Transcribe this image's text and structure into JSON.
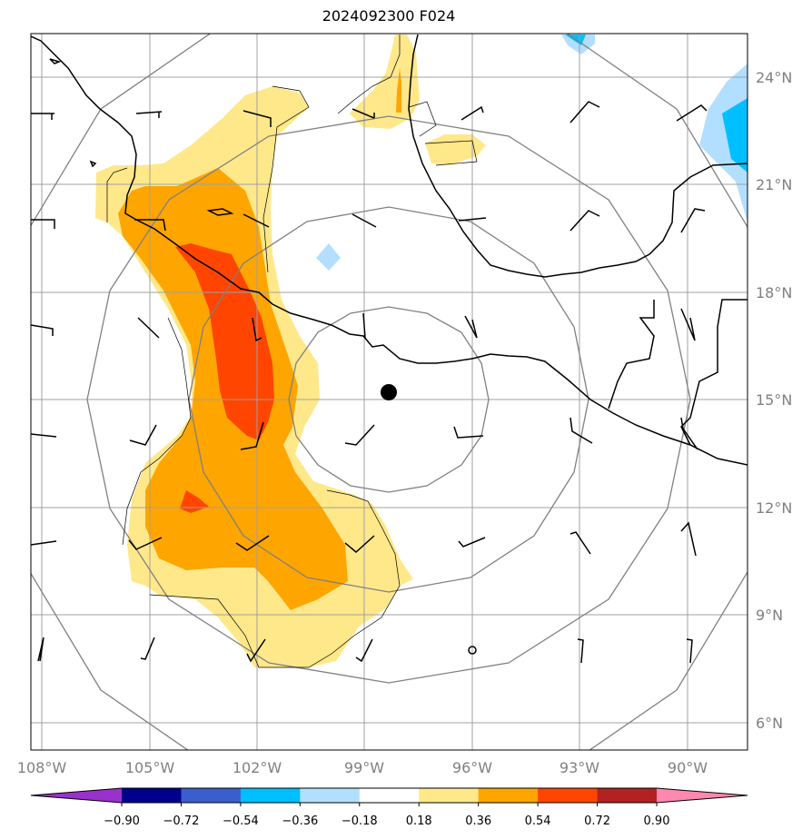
{
  "title": "2024092300 F024",
  "lon_labels": [
    "108°W",
    "105°W",
    "102°W",
    "99°W",
    "96°W",
    "93°W",
    "90°W"
  ],
  "lat_labels": [
    "24°N",
    "21°N",
    "18°N",
    "15°N",
    "12°N",
    "9°N",
    "6°N"
  ],
  "colorbar": {
    "ticks": [
      "−0.90",
      "−0.72",
      "−0.54",
      "−0.36",
      "−0.18",
      "0.18",
      "0.36",
      "0.54",
      "0.72",
      "0.90"
    ],
    "colors": [
      "#9932cc",
      "#00008b",
      "#3a5fcd",
      "#00bfff",
      "#b2dfff",
      "#ffffff",
      "#ffe88a",
      "#ffa500",
      "#ff4500",
      "#b22222",
      "#ff88b0"
    ]
  },
  "center_marker": {
    "lon": -98.3,
    "lat": 15.2
  },
  "fill_colors": {
    "pos1": "#ffe88a",
    "pos2": "#ffa500",
    "pos3": "#ff4500",
    "neg1": "#b2dfff",
    "neg2": "#00bfff"
  }
}
